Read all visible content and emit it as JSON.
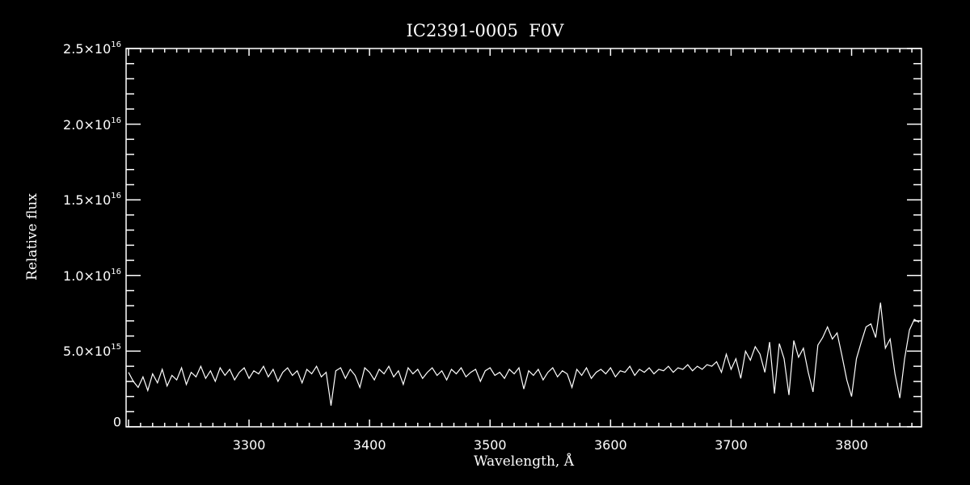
{
  "chart_data": {
    "type": "line",
    "title": "IC2391-0005  F0V",
    "xlabel": "Wavelength, Å",
    "ylabel": "Relative flux",
    "xlim": [
      3198,
      3858
    ],
    "ylim": [
      0,
      2.5e+16
    ],
    "y_unit_scale": 1000000000000000.0,
    "x_ticks": [
      {
        "value": 3300,
        "label": "3300"
      },
      {
        "value": 3400,
        "label": "3400"
      },
      {
        "value": 3500,
        "label": "3500"
      },
      {
        "value": 3600,
        "label": "3600"
      },
      {
        "value": 3700,
        "label": "3700"
      },
      {
        "value": 3800,
        "label": "3800"
      }
    ],
    "y_ticks": [
      {
        "value": 0,
        "base": "0",
        "exp": ""
      },
      {
        "value": 5,
        "base": "5.0×10",
        "exp": "15"
      },
      {
        "value": 10,
        "base": "1.0×10",
        "exp": "16"
      },
      {
        "value": 15,
        "base": "1.5×10",
        "exp": "16"
      },
      {
        "value": 20,
        "base": "2.0×10",
        "exp": "16"
      },
      {
        "value": 25,
        "base": "2.5×10",
        "exp": "16"
      }
    ],
    "x_minor_step": 10,
    "y_minor_step": 1,
    "grid": false,
    "series": [
      {
        "name": "IC2391-0005",
        "x_start": 3200,
        "x_step": 4,
        "values": [
          3.6,
          3.0,
          2.6,
          3.3,
          2.4,
          3.5,
          2.9,
          3.8,
          2.7,
          3.4,
          3.1,
          3.9,
          2.8,
          3.6,
          3.3,
          4.0,
          3.2,
          3.7,
          3.0,
          3.9,
          3.4,
          3.8,
          3.1,
          3.6,
          3.9,
          3.2,
          3.7,
          3.5,
          4.0,
          3.3,
          3.8,
          3.0,
          3.6,
          3.9,
          3.4,
          3.7,
          2.9,
          3.8,
          3.5,
          4.0,
          3.3,
          3.6,
          1.4,
          3.7,
          3.9,
          3.2,
          3.8,
          3.4,
          2.6,
          3.9,
          3.6,
          3.1,
          3.8,
          3.5,
          4.0,
          3.3,
          3.7,
          2.8,
          3.9,
          3.5,
          3.8,
          3.2,
          3.6,
          3.9,
          3.4,
          3.7,
          3.1,
          3.8,
          3.5,
          3.9,
          3.3,
          3.6,
          3.8,
          3.0,
          3.7,
          3.9,
          3.4,
          3.6,
          3.2,
          3.8,
          3.5,
          3.9,
          2.5,
          3.7,
          3.4,
          3.8,
          3.1,
          3.6,
          3.9,
          3.3,
          3.7,
          3.5,
          2.6,
          3.8,
          3.4,
          3.9,
          3.2,
          3.6,
          3.8,
          3.5,
          3.9,
          3.3,
          3.7,
          3.6,
          4.0,
          3.4,
          3.8,
          3.6,
          3.9,
          3.5,
          3.8,
          3.7,
          4.0,
          3.6,
          3.9,
          3.8,
          4.1,
          3.7,
          4.0,
          3.8,
          4.1,
          4.0,
          4.3,
          3.6,
          4.8,
          3.8,
          4.5,
          3.2,
          5.0,
          4.4,
          5.3,
          4.8,
          3.6,
          5.6,
          2.2,
          5.5,
          4.5,
          2.1,
          5.7,
          4.6,
          5.2,
          3.6,
          2.3,
          5.4,
          5.9,
          6.6,
          5.8,
          6.2,
          4.7,
          3.1,
          2.0,
          4.5,
          5.6,
          6.6,
          6.8,
          5.9,
          8.2,
          5.2,
          5.8,
          3.5,
          1.9,
          4.5,
          6.4,
          7.1,
          6.9
        ]
      }
    ]
  }
}
